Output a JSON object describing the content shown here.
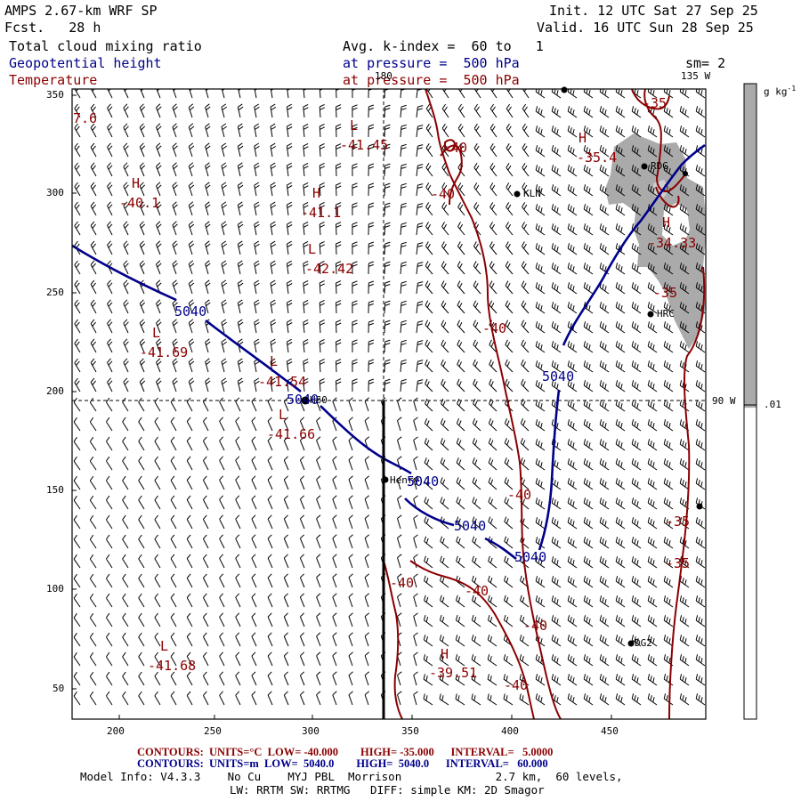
{
  "header": {
    "model": "AMPS 2.67-km WRF SP",
    "forecast": "Fcst.   28 h",
    "init": "Init. 12 UTC Sat 27 Sep 25",
    "valid": "Valid. 16 UTC Sun 28 Sep 25",
    "field1": "Total cloud mixing ratio",
    "field2": "Geopotential height",
    "field3": "Temperature",
    "avg": "Avg. k-index =  60 to   1",
    "pressure1": "at pressure =  500 hPa",
    "pressure2": "at pressure =  500 hPa",
    "smoothing": "sm= 2"
  },
  "colors": {
    "cloud_shade": "#a9a9a9",
    "height_contour": "#00008b",
    "temp_contour": "#8b0000",
    "frame": "#000000"
  },
  "map": {
    "x_ticks": [
      "200",
      "250",
      "300",
      "350",
      "400",
      "450"
    ],
    "y_ticks": [
      "350",
      "300",
      "250",
      "200",
      "150",
      "100",
      "50"
    ],
    "longitude_labels": {
      "lon_180": "180",
      "lon_135w": "135 W",
      "lon_90w": "90 W"
    },
    "stations": [
      {
        "name": "RDG"
      },
      {
        "name": "KLN"
      },
      {
        "name": "HRC"
      },
      {
        "name": "Henry"
      },
      {
        "name": "DG2"
      },
      {
        "name": "H60"
      }
    ],
    "height_labels": [
      "5040",
      "5040",
      "5040",
      "5040",
      "5040",
      "5040"
    ],
    "temp_labels": [
      "-40",
      "-40",
      "-40",
      "-40",
      "-40",
      "-40",
      "-40",
      "-40",
      "-35",
      "-35",
      "-35",
      "-35"
    ],
    "extrema": [
      {
        "type": "L",
        "value": "7.6"
      },
      {
        "type": "L",
        "value": "-41.45"
      },
      {
        "type": "H",
        "value": "-35.4"
      },
      {
        "type": "H",
        "value": "-40.1"
      },
      {
        "type": "H",
        "value": "-41.1"
      },
      {
        "type": "L",
        "value": "-42.42"
      },
      {
        "type": "H",
        "value": "-34.33"
      },
      {
        "type": "L",
        "value": "-41.69"
      },
      {
        "type": "L",
        "value": "-41.54"
      },
      {
        "type": "L",
        "value": "-41.66"
      },
      {
        "type": "H",
        "value": "-39.51"
      },
      {
        "type": "L",
        "value": "-41.68"
      }
    ]
  },
  "colorbar": {
    "unit": "g kg",
    "unit_exp": "-1",
    "label": ".01",
    "fill_fraction": 0.51
  },
  "footer": {
    "temp_contours": "CONTOURS:  UNITS=°C  LOW= -40.000        HIGH= -35.000      INTERVAL=   5.0000",
    "height_contours": "CONTOURS:  UNITS=m  LOW=  5040.0        HIGH=  5040.0      INTERVAL=   60.000",
    "model_info": "Model Info: V4.3.3    No Cu    MYJ PBL  Morrison              2.7 km,  60 levels,",
    "physics": "LW: RRTM SW: RRTMG   DIFF: simple KM: 2D Smagor"
  }
}
